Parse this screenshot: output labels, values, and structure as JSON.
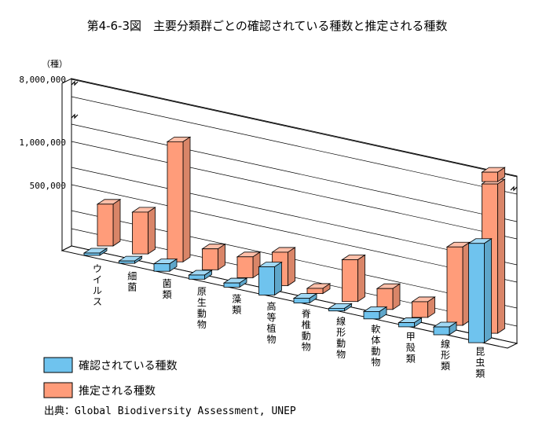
{
  "chart_data": {
    "type": "bar",
    "subtype": "3d-clustered-bar",
    "title": "第4-6-3図　主要分類群ごとの確認されている種数と推定される種数",
    "ylabel": "（種）",
    "y_scale": "broken",
    "y_ticks": [
      "500,000",
      "1,000,000",
      "8,000,000"
    ],
    "ylim": [
      0,
      8000000
    ],
    "grid": true,
    "legend_position": "bottom-left",
    "categories": [
      "ウイルス",
      "細菌",
      "菌類",
      "原生動物",
      "藻類",
      "高等植物",
      "脊椎動物",
      "線形動物",
      "軟体動物",
      "甲殻類",
      "線形類",
      "昆虫類"
    ],
    "series": [
      {
        "name": "確認されている種数",
        "color": "#6fc3ee",
        "values": [
          4000,
          4000,
          72000,
          40000,
          40000,
          270000,
          45000,
          25000,
          70000,
          40000,
          75000,
          950000
        ]
      },
      {
        "name": "推定される種数",
        "color": "#ff9c7a",
        "values": [
          400000,
          400000,
          1500000,
          200000,
          200000,
          320000,
          50000,
          400000,
          200000,
          150000,
          750000,
          8000000
        ]
      }
    ]
  },
  "source": "出典：Global Biodiversity Assessment, UNEP"
}
